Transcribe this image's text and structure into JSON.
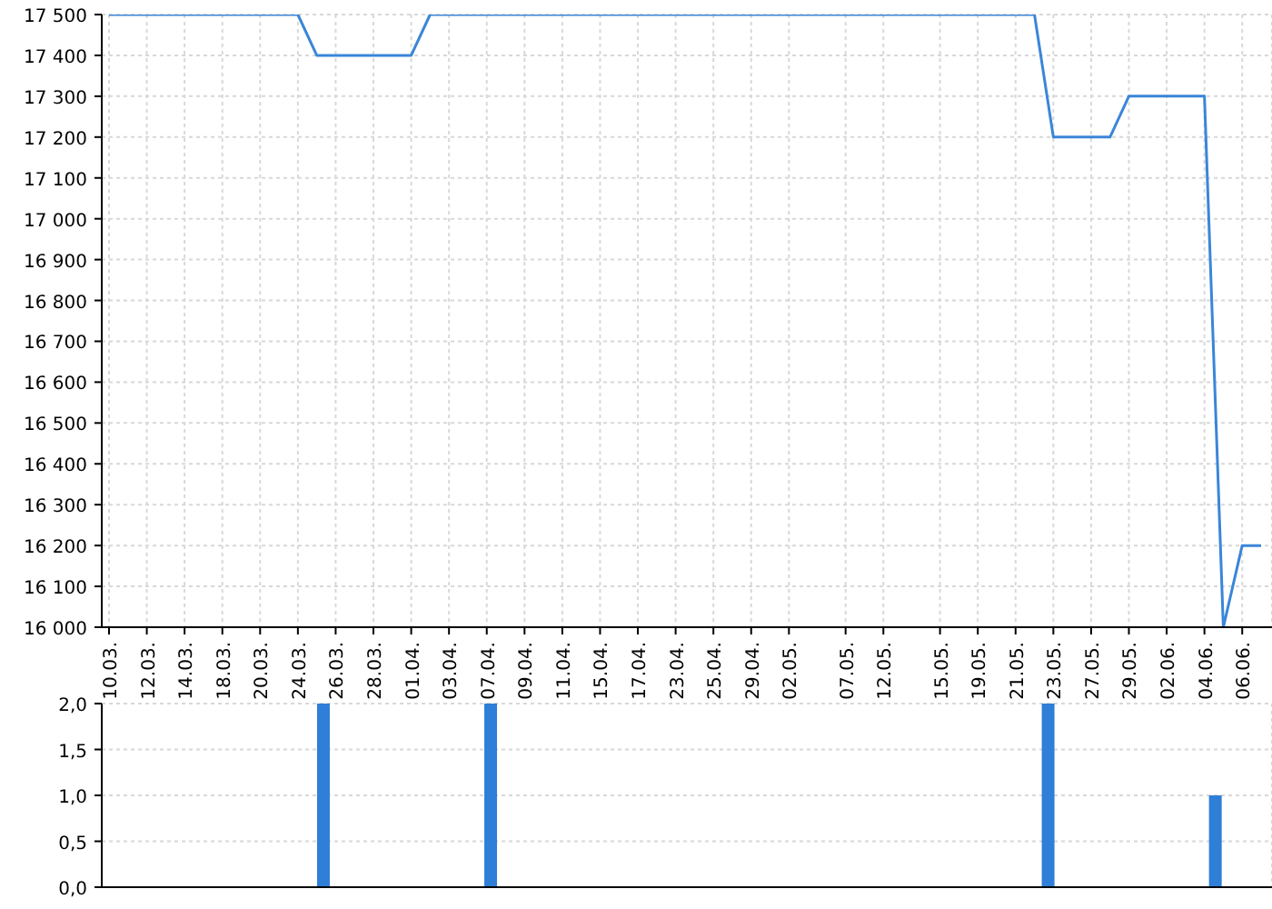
{
  "chart_data": [
    {
      "type": "line",
      "categories": [
        "10.03.",
        null,
        "12.03.",
        null,
        "14.03.",
        null,
        "18.03.",
        null,
        "20.03.",
        null,
        "24.03.",
        null,
        "26.03.",
        null,
        "28.03.",
        null,
        "01.04.",
        null,
        "03.04.",
        null,
        "07.04.",
        null,
        "09.04.",
        null,
        "11.04.",
        null,
        "15.04.",
        null,
        "17.04.",
        null,
        "23.04.",
        null,
        "25.04.",
        null,
        "29.04.",
        null,
        "02.05.",
        null,
        null,
        "07.05.",
        null,
        "12.05.",
        null,
        null,
        "15.05.",
        null,
        "19.05.",
        null,
        "21.05.",
        null,
        "23.05.",
        null,
        "27.05.",
        null,
        "29.05.",
        null,
        "02.06.",
        null,
        "04.06.",
        null,
        "06.06.",
        null
      ],
      "series": [
        {
          "color": "#3a86d8",
          "values": [
            17500,
            17500,
            17500,
            17500,
            17500,
            17500,
            17500,
            17500,
            17500,
            17500,
            17500,
            17400,
            17400,
            17400,
            17400,
            17400,
            17400,
            17500,
            17500,
            17500,
            17500,
            17500,
            17500,
            17500,
            17500,
            17500,
            17500,
            17500,
            17500,
            17500,
            17500,
            17500,
            17500,
            17500,
            17500,
            17500,
            17500,
            17500,
            17500,
            17500,
            17500,
            17500,
            17500,
            17500,
            17500,
            17500,
            17500,
            17500,
            17500,
            17500,
            17200,
            17200,
            17200,
            17200,
            17300,
            17300,
            17300,
            17300,
            17300,
            16000,
            16200,
            16200
          ]
        }
      ],
      "ylim": [
        16000,
        17500
      ],
      "yticks": [
        {
          "value": 16000,
          "label": "16 000"
        },
        {
          "value": 16100,
          "label": "16 100"
        },
        {
          "value": 16200,
          "label": "16 200"
        },
        {
          "value": 16300,
          "label": "16 300"
        },
        {
          "value": 16400,
          "label": "16 400"
        },
        {
          "value": 16500,
          "label": "16 500"
        },
        {
          "value": 16600,
          "label": "16 600"
        },
        {
          "value": 16700,
          "label": "16 700"
        },
        {
          "value": 16800,
          "label": "16 800"
        },
        {
          "value": 16900,
          "label": "16 900"
        },
        {
          "value": 17000,
          "label": "17 000"
        },
        {
          "value": 17100,
          "label": "17 100"
        },
        {
          "value": 17200,
          "label": "17 200"
        },
        {
          "value": 17300,
          "label": "17 300"
        },
        {
          "value": 17400,
          "label": "17 400"
        },
        {
          "value": 17500,
          "label": "17 500"
        }
      ],
      "grid": true
    },
    {
      "type": "bar",
      "categories": [
        "10.03.",
        null,
        "12.03.",
        null,
        "14.03.",
        null,
        "18.03.",
        null,
        "20.03.",
        null,
        "24.03.",
        null,
        "26.03.",
        null,
        "28.03.",
        null,
        "01.04.",
        null,
        "03.04.",
        null,
        "07.04.",
        null,
        "09.04.",
        null,
        "11.04.",
        null,
        "15.04.",
        null,
        "17.04.",
        null,
        "23.04.",
        null,
        "25.04.",
        null,
        "29.04.",
        null,
        "02.05.",
        null,
        null,
        "07.05.",
        null,
        "12.05.",
        null,
        null,
        "15.05.",
        null,
        "19.05.",
        null,
        "21.05.",
        null,
        "23.05.",
        null,
        "27.05.",
        null,
        "29.05.",
        null,
        "02.06.",
        null,
        "04.06.",
        null,
        "06.06.",
        null
      ],
      "series": [
        {
          "color": "#2f7ed8",
          "values": [
            null,
            null,
            null,
            null,
            null,
            null,
            null,
            null,
            null,
            null,
            null,
            2,
            null,
            null,
            null,
            null,
            null,
            null,
            null,
            null,
            2,
            null,
            null,
            null,
            null,
            null,
            null,
            null,
            null,
            null,
            null,
            null,
            null,
            null,
            null,
            null,
            null,
            null,
            null,
            null,
            null,
            null,
            null,
            null,
            null,
            null,
            null,
            null,
            null,
            null,
            2,
            null,
            null,
            null,
            null,
            null,
            null,
            null,
            null,
            1,
            null,
            null
          ]
        }
      ],
      "ylim": [
        0,
        2
      ],
      "yticks": [
        {
          "value": 0,
          "label": "0,0"
        },
        {
          "value": 0.5,
          "label": "0,5"
        },
        {
          "value": 1,
          "label": "1,0"
        },
        {
          "value": 1.5,
          "label": "1,5"
        },
        {
          "value": 2,
          "label": "2,0"
        }
      ],
      "tick_labels": "y",
      "grid": true
    }
  ]
}
